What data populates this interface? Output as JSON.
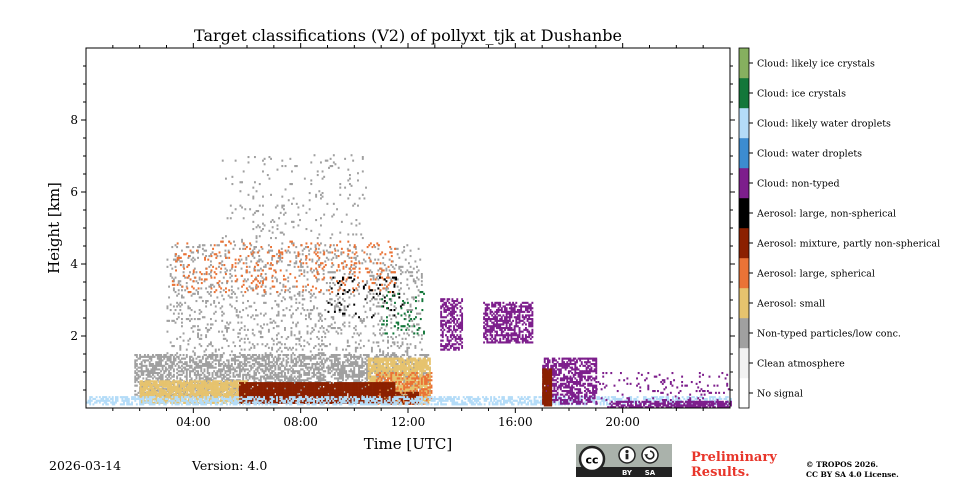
{
  "chart_data": {
    "type": "heatmap",
    "title": "Target classifications (V2) of pollyxt_tjk at Dushanbe",
    "xlabel": "Time [UTC]",
    "ylabel": "Height [km]",
    "xlim_hours": [
      0,
      24
    ],
    "ylim_km": [
      0,
      10
    ],
    "x_ticks": [
      {
        "value": 4,
        "label": "04:00"
      },
      {
        "value": 8,
        "label": "08:00"
      },
      {
        "value": 12,
        "label": "12:00"
      },
      {
        "value": 16,
        "label": "16:00"
      },
      {
        "value": 20,
        "label": "20:00"
      }
    ],
    "y_ticks": [
      {
        "value": 2,
        "label": "2"
      },
      {
        "value": 4,
        "label": "4"
      },
      {
        "value": 6,
        "label": "6"
      },
      {
        "value": 8,
        "label": "8"
      }
    ],
    "legend": {
      "placement": "right colorbar",
      "classes": [
        {
          "label": "No signal",
          "color": "#ffffff"
        },
        {
          "label": "Clean atmosphere",
          "color": "#f2f2f2"
        },
        {
          "label": "Non-typed particles/low conc.",
          "color": "#a0a0a0"
        },
        {
          "label": "Aerosol: small",
          "color": "#e6c36e"
        },
        {
          "label": "Aerosol: large, spherical",
          "color": "#ea7336"
        },
        {
          "label": "Aerosol: mixture, partly non-spherical",
          "color": "#8b2000"
        },
        {
          "label": "Aerosol: large, non-spherical",
          "color": "#000000"
        },
        {
          "label": "Cloud: non-typed",
          "color": "#7d1e8c"
        },
        {
          "label": "Cloud: water droplets",
          "color": "#3c8cd0"
        },
        {
          "label": "Cloud: likely water droplets",
          "color": "#b4dcf8"
        },
        {
          "label": "Cloud: ice crystals",
          "color": "#13773a"
        },
        {
          "label": "Cloud: likely ice crystals",
          "color": "#86b05f"
        }
      ]
    },
    "regions": [
      {
        "cls": 2,
        "t0": 1.8,
        "t1": 12.8,
        "h0": 0.3,
        "h1": 1.5,
        "density": 0.55
      },
      {
        "cls": 2,
        "t0": 3.0,
        "t1": 12.5,
        "h0": 1.5,
        "h1": 4.5,
        "density": 0.12
      },
      {
        "cls": 2,
        "t0": 5.0,
        "t1": 10.5,
        "h0": 4.5,
        "h1": 7.0,
        "density": 0.04
      },
      {
        "cls": 3,
        "t0": 2.0,
        "t1": 6.0,
        "h0": 0.12,
        "h1": 0.75,
        "density": 0.85
      },
      {
        "cls": 3,
        "t0": 10.5,
        "t1": 12.8,
        "h0": 0.1,
        "h1": 1.4,
        "density": 0.8
      },
      {
        "cls": 4,
        "t0": 10.8,
        "t1": 12.9,
        "h0": 0.1,
        "h1": 1.0,
        "density": 0.35
      },
      {
        "cls": 5,
        "t0": 5.7,
        "t1": 11.5,
        "h0": 0.12,
        "h1": 0.7,
        "density": 0.95
      },
      {
        "cls": 5,
        "t0": 11.2,
        "t1": 12.4,
        "h0": 0.1,
        "h1": 0.4,
        "density": 0.7
      },
      {
        "cls": 4,
        "t0": 3.2,
        "t1": 11.5,
        "h0": 3.2,
        "h1": 4.6,
        "density": 0.08
      },
      {
        "cls": 6,
        "t0": 9.0,
        "t1": 11.8,
        "h0": 2.5,
        "h1": 3.6,
        "density": 0.06
      },
      {
        "cls": 10,
        "t0": 11.0,
        "t1": 12.6,
        "h0": 2.0,
        "h1": 3.2,
        "density": 0.1
      },
      {
        "cls": 9,
        "t0": 0.0,
        "t1": 24.0,
        "h0": 0.08,
        "h1": 0.28,
        "density": 0.55
      },
      {
        "cls": 7,
        "t0": 13.2,
        "t1": 14.0,
        "h0": 1.6,
        "h1": 3.0,
        "density": 0.5
      },
      {
        "cls": 7,
        "t0": 14.8,
        "t1": 16.6,
        "h0": 1.8,
        "h1": 2.9,
        "density": 0.6
      },
      {
        "cls": 7,
        "t0": 17.0,
        "t1": 19.0,
        "h0": 0.1,
        "h1": 1.4,
        "density": 0.55
      },
      {
        "cls": 5,
        "t0": 17.0,
        "t1": 17.3,
        "h0": 0.05,
        "h1": 1.1,
        "density": 0.95
      },
      {
        "cls": 7,
        "t0": 19.0,
        "t1": 24.0,
        "h0": 0.0,
        "h1": 1.0,
        "density": 0.1
      },
      {
        "cls": 7,
        "t0": 19.5,
        "t1": 24.0,
        "h0": 0.0,
        "h1": 0.2,
        "density": 0.7
      }
    ]
  },
  "footer": {
    "date": "2026-03-14",
    "version": "Version: 4.0",
    "preliminary_line1": "Preliminary",
    "preliminary_line2": "Results.",
    "copyright_line1": "© TROPOS 2026.",
    "copyright_line2": "CC BY SA 4.0 License.",
    "cc_logo_text": "cc",
    "cc_by": "BY",
    "cc_sa": "SA"
  }
}
